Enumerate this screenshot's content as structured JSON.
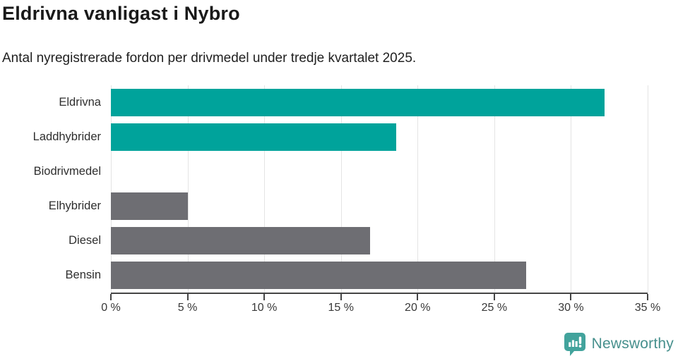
{
  "chart_data": {
    "type": "bar",
    "orientation": "horizontal",
    "title": "Eldrivna vanligast i Nybro",
    "subtitle": "Antal nyregistrerade fordon per drivmedel under tredje kvartalet 2025.",
    "categories": [
      "Eldrivna",
      "Laddhybrider",
      "Biodrivmedel",
      "Elhybrider",
      "Diesel",
      "Bensin"
    ],
    "values": [
      32.2,
      18.6,
      0,
      5.0,
      16.9,
      27.1
    ],
    "unit": "%",
    "bar_colors": [
      "#00a39b",
      "#00a39b",
      "#6e6e73",
      "#6e6e73",
      "#6e6e73",
      "#6e6e73"
    ],
    "x_ticks": [
      "0 %",
      "5 %",
      "10 %",
      "15 %",
      "20 %",
      "25 %",
      "30 %",
      "35 %"
    ],
    "x_tick_values": [
      0,
      5,
      10,
      15,
      20,
      25,
      30,
      35
    ],
    "xlim": [
      0,
      35
    ],
    "grid": true,
    "legend": "none"
  },
  "colors": {
    "accent_teal": "#00a39b",
    "neutral_gray": "#6e6e73",
    "gridline": "#e4e4e4",
    "axis": "#454545",
    "logo_icon": "#42a39c",
    "logo_text": "#47908d"
  },
  "footer": {
    "brand": "Newsworthy"
  }
}
